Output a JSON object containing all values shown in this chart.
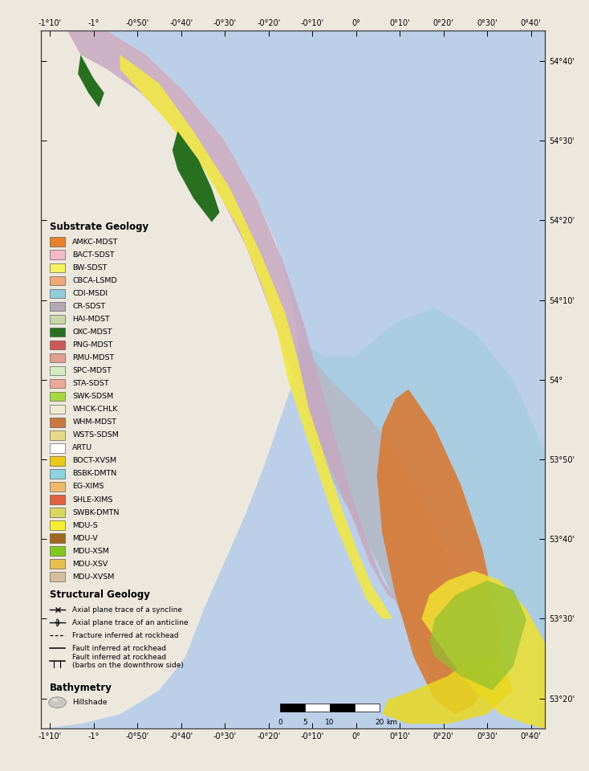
{
  "substrate_geology": [
    {
      "label": "AMKC-MDST",
      "color": "#E8822A"
    },
    {
      "label": "BACT-SDST",
      "color": "#F5B8C8"
    },
    {
      "label": "BW-SDST",
      "color": "#F5F060"
    },
    {
      "label": "CBCA-LSMD",
      "color": "#F0A878"
    },
    {
      "label": "CDI-MSDI",
      "color": "#90CCDA"
    },
    {
      "label": "CR-SDST",
      "color": "#B5A8B5"
    },
    {
      "label": "HAI-MDST",
      "color": "#C5D8A8"
    },
    {
      "label": "OXC-MDST",
      "color": "#287020"
    },
    {
      "label": "PNG-MDST",
      "color": "#CC5858"
    },
    {
      "label": "RMU-MDST",
      "color": "#E0A090"
    },
    {
      "label": "SPC-MDST",
      "color": "#D5EAC0"
    },
    {
      "label": "STA-SDST",
      "color": "#EEA898"
    },
    {
      "label": "SWK-SDSM",
      "color": "#A8D840"
    },
    {
      "label": "WHCK-CHLK",
      "color": "#EEEBD5"
    },
    {
      "label": "WHM-MDST",
      "color": "#C87840"
    },
    {
      "label": "WSTS-SDSM",
      "color": "#E5DA88"
    },
    {
      "label": "ARTU",
      "color": "#FFFFFF"
    },
    {
      "label": "BOCT-XVSM",
      "color": "#ECC818"
    },
    {
      "label": "BSBK-DMTN",
      "color": "#8CD4E0"
    },
    {
      "label": "EG-XIMS",
      "color": "#EEB868"
    },
    {
      "label": "SHLE-XIMS",
      "color": "#E06040"
    },
    {
      "label": "SWBK-DMTN",
      "color": "#D8D860"
    },
    {
      "label": "MDU-S",
      "color": "#F5EE30"
    },
    {
      "label": "MDU-V",
      "color": "#A06820"
    },
    {
      "label": "MDU-XSM",
      "color": "#80C820"
    },
    {
      "label": "MDU-XSV",
      "color": "#E8C050"
    },
    {
      "label": "MDU-XVSM",
      "color": "#D5BE9E"
    }
  ],
  "structural_geology": [
    {
      "label": "Axial plane trace of a syncline",
      "style": "syncline"
    },
    {
      "label": "Axial plane trace of an anticline",
      "style": "anticline"
    },
    {
      "label": "Fracture inferred at rockhead",
      "style": "dashed"
    },
    {
      "label": "Fault inferred at rockhead",
      "style": "solid"
    },
    {
      "label": "Fault inferred at rockhead\n(barbs on the downthrow side)",
      "style": "barbed"
    }
  ],
  "bathymetry_label": "Hillshade",
  "legend_title_substrate": "Substrate Geology",
  "legend_title_structural": "Structural Geology",
  "legend_title_bathymetry": "Bathymetry",
  "sea_color": "#BBCFE8",
  "land_color": "#EDE8DE",
  "outer_color": "#EDE8DE",
  "x_ticks_deg": [
    -1.1667,
    -1.0,
    -0.8333,
    -0.6667,
    -0.5,
    -0.3333,
    -0.1667,
    0.0,
    0.1667,
    0.3333,
    0.5,
    0.6667
  ],
  "x_tick_labels": [
    "-1°10'",
    "-1°",
    "-0°50'",
    "-0°40'",
    "-0°30'",
    "-0°20'",
    "-0°10'",
    "0°",
    "0°10'",
    "0°20'",
    "0°30'",
    "0°40'"
  ],
  "y_ticks_deg": [
    53.3333,
    53.5,
    53.6667,
    53.8333,
    54.0,
    54.1667,
    54.3333,
    54.5,
    54.6667
  ],
  "y_tick_labels": [
    "53°20'",
    "53°30'",
    "53°40'",
    "53°50'",
    "54°",
    "54°10'",
    "54°20'",
    "54°30'",
    "54°40'"
  ],
  "xlim": [
    -1.2,
    0.72
  ],
  "ylim": [
    53.27,
    54.73
  ]
}
